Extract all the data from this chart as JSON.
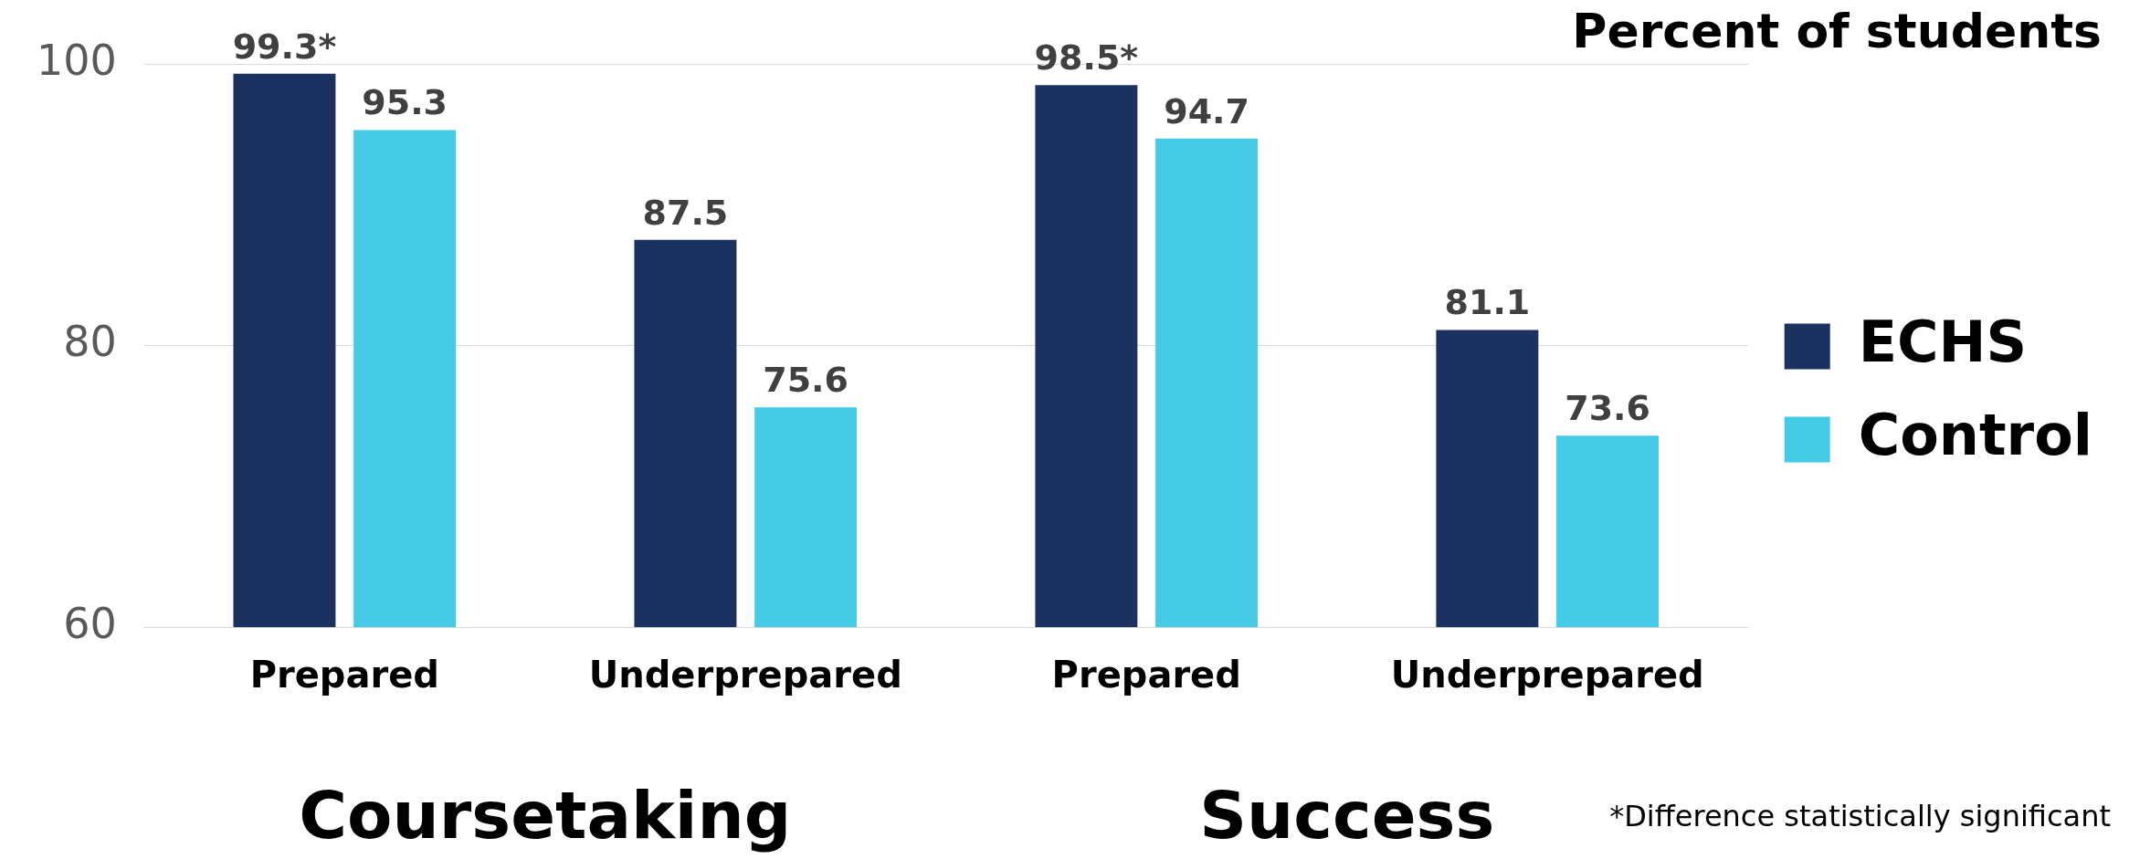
{
  "chart_data": {
    "type": "bar",
    "title": "Percent of students",
    "categories": [
      "Prepared",
      "Underprepared",
      "Prepared",
      "Underprepared"
    ],
    "series": [
      {
        "name": "ECHS",
        "color": "#1b3160",
        "values": [
          99.3,
          87.5,
          98.5,
          81.1
        ],
        "value_labels": [
          "99.3*",
          "87.5",
          "98.5*",
          "81.1"
        ]
      },
      {
        "name": "Control",
        "color": "#45cbe6",
        "values": [
          95.3,
          75.6,
          94.7,
          73.6
        ],
        "value_labels": [
          "95.3",
          "75.6",
          "94.7",
          "73.6"
        ]
      }
    ],
    "ylim": [
      60,
      100
    ],
    "yticks": [
      60,
      80,
      100
    ],
    "grid": "y",
    "legend": "right",
    "annotations": [
      "Coursetaking",
      "Success",
      "*Difference statistically significant"
    ]
  }
}
